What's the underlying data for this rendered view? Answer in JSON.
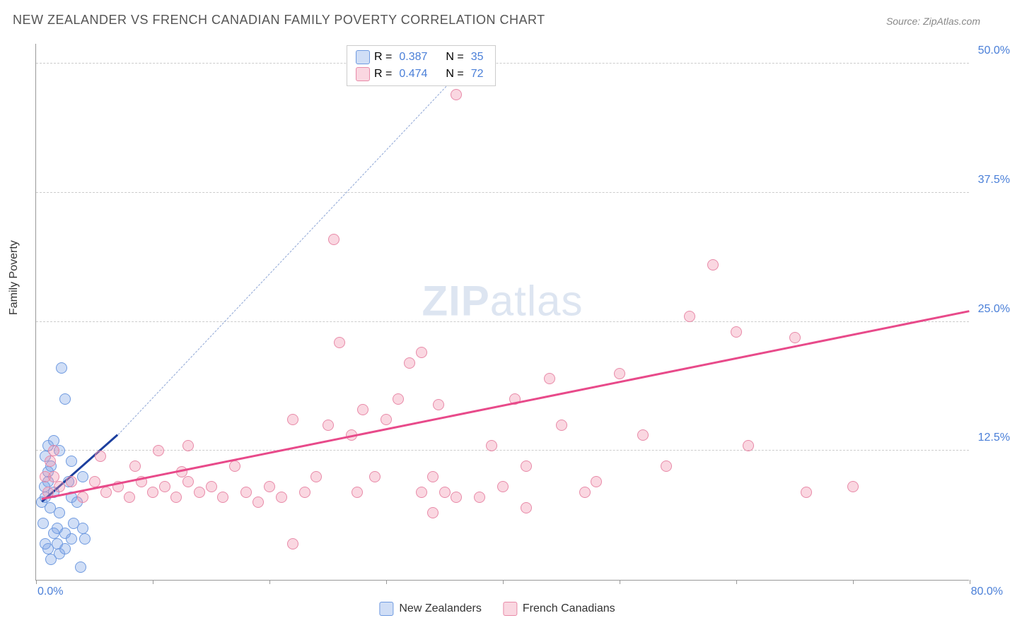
{
  "title": "NEW ZEALANDER VS FRENCH CANADIAN FAMILY POVERTY CORRELATION CHART",
  "source": "Source: ZipAtlas.com",
  "watermark_zip": "ZIP",
  "watermark_atlas": "atlas",
  "y_axis_label": "Family Poverty",
  "chart": {
    "type": "scatter",
    "xlim": [
      0,
      80
    ],
    "ylim": [
      0,
      52
    ],
    "x_ticks": [
      0,
      10,
      20,
      30,
      40,
      50,
      60,
      70,
      80
    ],
    "x_origin_label": "0.0%",
    "x_max_label": "80.0%",
    "y_gridlines": [
      {
        "value": 12.5,
        "label": "12.5%"
      },
      {
        "value": 25.0,
        "label": "25.0%"
      },
      {
        "value": 37.5,
        "label": "37.5%"
      },
      {
        "value": 50.0,
        "label": "50.0%"
      }
    ],
    "background_color": "#ffffff",
    "grid_color": "#cccccc",
    "axis_color": "#999999",
    "tick_label_color": "#4a7fd8",
    "point_radius": 8,
    "series": [
      {
        "name": "New Zealanders",
        "fill": "rgba(120,160,230,0.35)",
        "stroke": "#6f9ae0",
        "trend_color": "#1c3f9e",
        "trend_dash_color": "#8ea6d6",
        "trend": {
          "x1": 0.5,
          "y1": 7.5,
          "x2": 7,
          "y2": 14,
          "extend_x": 37,
          "extend_y": 50
        },
        "points": [
          [
            0.5,
            7.5
          ],
          [
            0.8,
            8.0
          ],
          [
            1.0,
            9.5
          ],
          [
            1.2,
            7.0
          ],
          [
            1.5,
            8.5
          ],
          [
            1.0,
            10.5
          ],
          [
            1.3,
            11.0
          ],
          [
            2.0,
            12.5
          ],
          [
            1.5,
            13.5
          ],
          [
            0.8,
            12.0
          ],
          [
            2.2,
            20.5
          ],
          [
            2.5,
            17.5
          ],
          [
            1.0,
            13.0
          ],
          [
            0.7,
            9.0
          ],
          [
            2.8,
            9.5
          ],
          [
            3.0,
            8.0
          ],
          [
            3.5,
            7.5
          ],
          [
            4.0,
            10.0
          ],
          [
            3.0,
            11.5
          ],
          [
            2.0,
            6.5
          ],
          [
            1.8,
            5.0
          ],
          [
            4.2,
            4.0
          ],
          [
            1.5,
            4.5
          ],
          [
            0.6,
            5.5
          ],
          [
            2.5,
            4.5
          ],
          [
            3.2,
            5.5
          ],
          [
            1.0,
            3.0
          ],
          [
            2.0,
            2.5
          ],
          [
            0.8,
            3.5
          ],
          [
            1.3,
            2.0
          ],
          [
            1.8,
            3.5
          ],
          [
            2.5,
            3.0
          ],
          [
            3.0,
            4.0
          ],
          [
            4.0,
            5.0
          ],
          [
            3.8,
            1.2
          ]
        ]
      },
      {
        "name": "French Canadians",
        "fill": "rgba(240,140,170,0.35)",
        "stroke": "#e88aa8",
        "trend_color": "#e84a8a",
        "trend": {
          "x1": 0.5,
          "y1": 7.8,
          "x2": 80,
          "y2": 26
        },
        "points": [
          [
            1.0,
            8.5
          ],
          [
            1.5,
            10.0
          ],
          [
            2.0,
            9.0
          ],
          [
            1.2,
            11.5
          ],
          [
            0.8,
            10.0
          ],
          [
            1.5,
            12.5
          ],
          [
            3.0,
            9.5
          ],
          [
            4.0,
            8.0
          ],
          [
            5.0,
            9.5
          ],
          [
            6.0,
            8.5
          ],
          [
            5.5,
            12.0
          ],
          [
            7.0,
            9.0
          ],
          [
            8.0,
            8.0
          ],
          [
            8.5,
            11.0
          ],
          [
            9.0,
            9.5
          ],
          [
            10.0,
            8.5
          ],
          [
            10.5,
            12.5
          ],
          [
            11.0,
            9.0
          ],
          [
            12.0,
            8.0
          ],
          [
            12.5,
            10.5
          ],
          [
            13.0,
            9.5
          ],
          [
            14.0,
            8.5
          ],
          [
            15.0,
            9.0
          ],
          [
            16.0,
            8.0
          ],
          [
            17.0,
            11.0
          ],
          [
            18.0,
            8.5
          ],
          [
            19.0,
            7.5
          ],
          [
            20.0,
            9.0
          ],
          [
            21.0,
            8.0
          ],
          [
            13.0,
            13.0
          ],
          [
            22.0,
            15.5
          ],
          [
            23.0,
            8.5
          ],
          [
            24.0,
            10.0
          ],
          [
            25.0,
            15.0
          ],
          [
            26.0,
            23.0
          ],
          [
            27.0,
            14.0
          ],
          [
            27.5,
            8.5
          ],
          [
            28.0,
            16.5
          ],
          [
            25.5,
            33.0
          ],
          [
            29.0,
            10.0
          ],
          [
            30.0,
            15.5
          ],
          [
            31.0,
            17.5
          ],
          [
            32.0,
            21.0
          ],
          [
            33.0,
            22.0
          ],
          [
            34.0,
            10.0
          ],
          [
            34.5,
            17.0
          ],
          [
            35.0,
            8.5
          ],
          [
            36.0,
            8.0
          ],
          [
            33.0,
            8.5
          ],
          [
            34.0,
            6.5
          ],
          [
            36.0,
            47.0
          ],
          [
            38.0,
            8.0
          ],
          [
            22.0,
            3.5
          ],
          [
            39.0,
            13.0
          ],
          [
            40.0,
            9.0
          ],
          [
            41.0,
            17.5
          ],
          [
            42.0,
            11.0
          ],
          [
            44.0,
            19.5
          ],
          [
            45.0,
            15.0
          ],
          [
            47.0,
            8.5
          ],
          [
            48.0,
            9.5
          ],
          [
            42.0,
            7.0
          ],
          [
            50.0,
            20.0
          ],
          [
            52.0,
            14.0
          ],
          [
            54.0,
            11.0
          ],
          [
            56.0,
            25.5
          ],
          [
            58.0,
            30.5
          ],
          [
            60.0,
            24.0
          ],
          [
            61.0,
            13.0
          ],
          [
            65.0,
            23.5
          ],
          [
            66.0,
            8.5
          ],
          [
            70.0,
            9.0
          ]
        ]
      }
    ]
  },
  "stats_box": {
    "rows": [
      {
        "swatch_fill": "rgba(120,160,230,0.35)",
        "swatch_stroke": "#6f9ae0",
        "r_label": "R =",
        "r": "0.387",
        "n_label": "N =",
        "n": "35"
      },
      {
        "swatch_fill": "rgba(240,140,170,0.35)",
        "swatch_stroke": "#e88aa8",
        "r_label": "R =",
        "r": "0.474",
        "n_label": "N =",
        "n": "72"
      }
    ]
  },
  "bottom_legend": [
    {
      "swatch_fill": "rgba(120,160,230,0.35)",
      "swatch_stroke": "#6f9ae0",
      "label": "New Zealanders"
    },
    {
      "swatch_fill": "rgba(240,140,170,0.35)",
      "swatch_stroke": "#e88aa8",
      "label": "French Canadians"
    }
  ]
}
